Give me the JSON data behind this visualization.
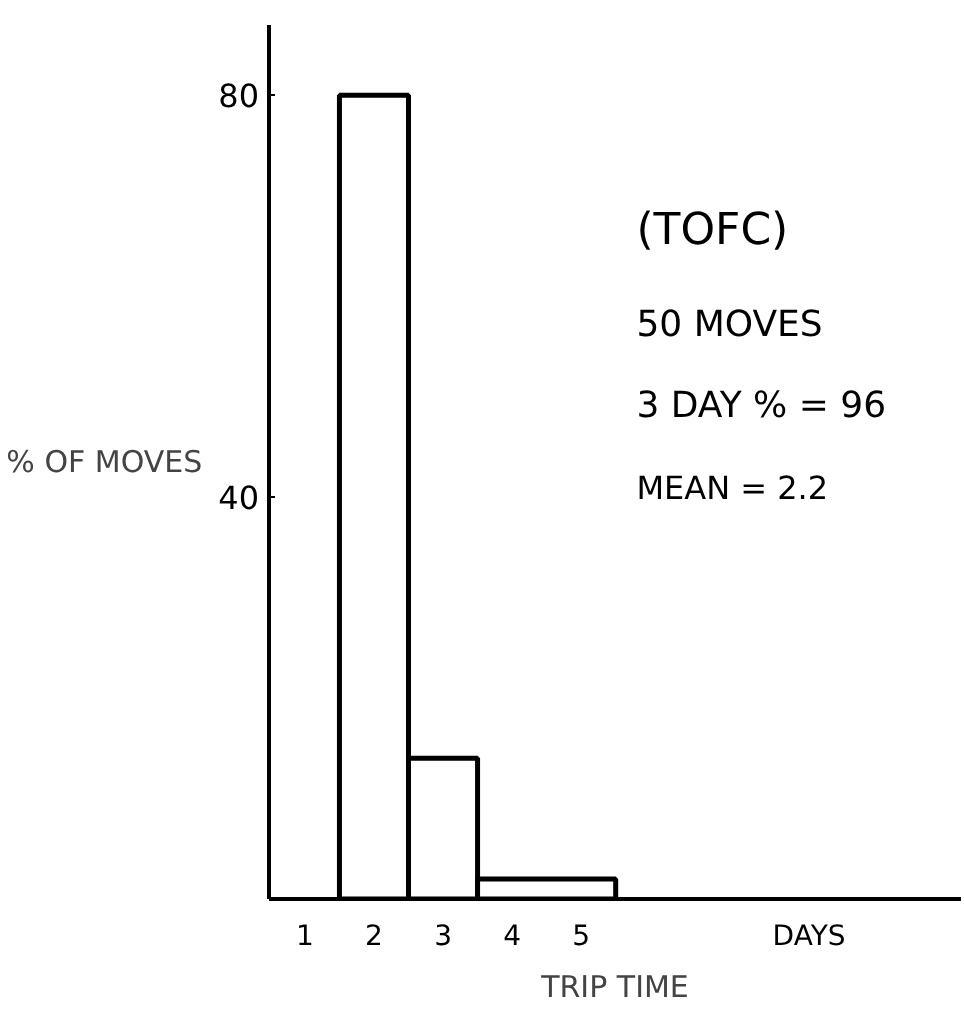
{
  "chart_data": {
    "type": "histogram",
    "xlabel": "TRIP TIME",
    "ylabel": "% OF MOVES",
    "bins": [
      1.5,
      2.5,
      3.5,
      5.5
    ],
    "values": [
      80,
      14,
      2
    ],
    "color": "#ffffff",
    "xlim": [
      0.48,
      10.5
    ],
    "xticks": [
      1,
      2,
      3,
      4,
      5
    ],
    "ylim": [
      0,
      87
    ],
    "yticks": [
      40,
      80
    ],
    "grid": false,
    "annotations": [
      "(TOFC)",
      "50 MOVES",
      "3 DAY % = 96",
      "MEAN = 2.2",
      "DAYS"
    ]
  }
}
